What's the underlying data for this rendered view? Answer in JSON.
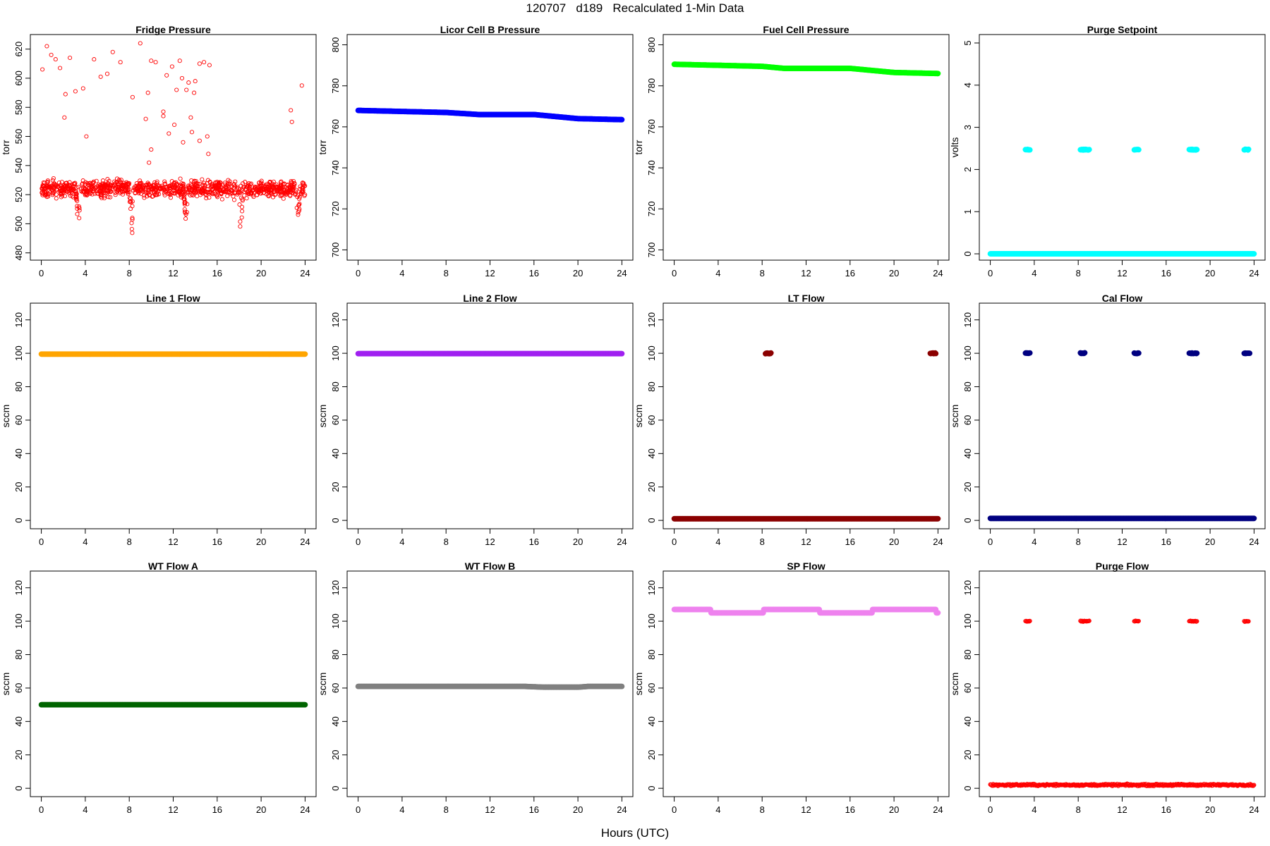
{
  "figure": {
    "title": "120707   d189   Recalculated 1-Min Data",
    "xlabel": "Hours (UTC)"
  },
  "chart_data": [
    {
      "type": "scatter",
      "title": "Fridge Pressure",
      "ylabel": "torr",
      "ylim": [
        475,
        630
      ],
      "yticks": [
        480,
        500,
        520,
        540,
        560,
        580,
        600,
        620
      ],
      "xlim": [
        -1,
        25
      ],
      "xticks": [
        0,
        4,
        8,
        12,
        16,
        20,
        24
      ],
      "color": "#ff0000",
      "marker": "open-circle",
      "pattern": "fridge"
    },
    {
      "type": "scatter",
      "title": "Licor Cell B Pressure",
      "ylabel": "torr",
      "ylim": [
        695,
        805
      ],
      "yticks": [
        700,
        720,
        740,
        760,
        780,
        800
      ],
      "xlim": [
        -1,
        25
      ],
      "xticks": [
        0,
        4,
        8,
        12,
        16,
        20,
        24
      ],
      "color": "#0000ff",
      "marker": "filled",
      "pattern": "line",
      "segments": [
        [
          0,
          768
        ],
        [
          4,
          767.5
        ],
        [
          8,
          767
        ],
        [
          11,
          766
        ],
        [
          16,
          766
        ],
        [
          18,
          765
        ],
        [
          20,
          764
        ],
        [
          24,
          763.5
        ]
      ]
    },
    {
      "type": "scatter",
      "title": "Fuel Cell Pressure",
      "ylabel": "torr",
      "ylim": [
        695,
        805
      ],
      "yticks": [
        700,
        720,
        740,
        760,
        780,
        800
      ],
      "xlim": [
        -1,
        25
      ],
      "xticks": [
        0,
        4,
        8,
        12,
        16,
        20,
        24
      ],
      "color": "#00ff00",
      "marker": "filled",
      "pattern": "line",
      "segments": [
        [
          0,
          790.5
        ],
        [
          4,
          790
        ],
        [
          8,
          789.5
        ],
        [
          10,
          788.5
        ],
        [
          16,
          788.5
        ],
        [
          18,
          787.5
        ],
        [
          20,
          786.5
        ],
        [
          24,
          786
        ]
      ]
    },
    {
      "type": "scatter",
      "title": "Purge Setpoint",
      "ylabel": "volts",
      "ylim": [
        -0.15,
        5.2
      ],
      "yticks": [
        0,
        1,
        2,
        3,
        4,
        5
      ],
      "xlim": [
        -1,
        25
      ],
      "xticks": [
        0,
        4,
        8,
        12,
        16,
        20,
        24
      ],
      "color": "#00ffff",
      "marker": "filled",
      "pattern": "flat-spikes",
      "base": 0,
      "spike": 2.47,
      "spikes": [
        [
          3.2,
          3.6
        ],
        [
          8.2,
          9.0
        ],
        [
          13.1,
          13.5
        ],
        [
          18.1,
          18.8
        ],
        [
          23.1,
          23.5
        ]
      ]
    },
    {
      "type": "scatter",
      "title": "Line 1 Flow",
      "ylabel": "sccm",
      "ylim": [
        -5,
        130
      ],
      "yticks": [
        0,
        20,
        40,
        60,
        80,
        100,
        120
      ],
      "xlim": [
        -1,
        25
      ],
      "xticks": [
        0,
        4,
        8,
        12,
        16,
        20,
        24
      ],
      "color": "#ffa500",
      "marker": "filled",
      "pattern": "line",
      "segments": [
        [
          0,
          99.5
        ],
        [
          24,
          99.5
        ]
      ]
    },
    {
      "type": "scatter",
      "title": "Line 2 Flow",
      "ylabel": "sccm",
      "ylim": [
        -5,
        130
      ],
      "yticks": [
        0,
        20,
        40,
        60,
        80,
        100,
        120
      ],
      "xlim": [
        -1,
        25
      ],
      "xticks": [
        0,
        4,
        8,
        12,
        16,
        20,
        24
      ],
      "color": "#a020f0",
      "marker": "filled",
      "pattern": "line",
      "segments": [
        [
          0,
          99.8
        ],
        [
          24,
          99.8
        ]
      ]
    },
    {
      "type": "scatter",
      "title": "LT Flow",
      "ylabel": "sccm",
      "ylim": [
        -5,
        130
      ],
      "yticks": [
        0,
        20,
        40,
        60,
        80,
        100,
        120
      ],
      "xlim": [
        -1,
        25
      ],
      "xticks": [
        0,
        4,
        8,
        12,
        16,
        20,
        24
      ],
      "color": "#8b0000",
      "marker": "filled",
      "pattern": "flat-spikes",
      "base": 1,
      "spike": 100,
      "spikes": [
        [
          8.3,
          8.8
        ],
        [
          23.3,
          23.8
        ]
      ]
    },
    {
      "type": "scatter",
      "title": "Cal Flow",
      "ylabel": "sccm",
      "ylim": [
        -5,
        130
      ],
      "yticks": [
        0,
        20,
        40,
        60,
        80,
        100,
        120
      ],
      "xlim": [
        -1,
        25
      ],
      "xticks": [
        0,
        4,
        8,
        12,
        16,
        20,
        24
      ],
      "color": "#000080",
      "marker": "filled",
      "pattern": "flat-spikes",
      "base": 1.2,
      "spike": 100,
      "spikes": [
        [
          3.2,
          3.6
        ],
        [
          8.2,
          8.6
        ],
        [
          13.1,
          13.5
        ],
        [
          18.1,
          18.8
        ],
        [
          23.1,
          23.6
        ]
      ]
    },
    {
      "type": "scatter",
      "title": "WT Flow A",
      "ylabel": "sccm",
      "ylim": [
        -5,
        130
      ],
      "yticks": [
        0,
        20,
        40,
        60,
        80,
        100,
        120
      ],
      "xlim": [
        -1,
        25
      ],
      "xticks": [
        0,
        4,
        8,
        12,
        16,
        20,
        24
      ],
      "color": "#006400",
      "marker": "filled",
      "pattern": "line",
      "segments": [
        [
          0,
          50
        ],
        [
          24,
          50
        ]
      ]
    },
    {
      "type": "scatter",
      "title": "WT Flow B",
      "ylabel": "sccm",
      "ylim": [
        -5,
        130
      ],
      "yticks": [
        0,
        20,
        40,
        60,
        80,
        100,
        120
      ],
      "xlim": [
        -1,
        25
      ],
      "xticks": [
        0,
        4,
        8,
        12,
        16,
        20,
        24
      ],
      "color": "#808080",
      "marker": "filled",
      "pattern": "line",
      "segments": [
        [
          0,
          61
        ],
        [
          15,
          61
        ],
        [
          17,
          60.5
        ],
        [
          20,
          60.5
        ],
        [
          21,
          61
        ],
        [
          24,
          61
        ]
      ]
    },
    {
      "type": "scatter",
      "title": "SP Flow",
      "ylabel": "sccm",
      "ylim": [
        -5,
        130
      ],
      "yticks": [
        0,
        20,
        40,
        60,
        80,
        100,
        120
      ],
      "xlim": [
        -1,
        25
      ],
      "xticks": [
        0,
        4,
        8,
        12,
        16,
        20,
        24
      ],
      "color": "#ee82ee",
      "marker": "filled",
      "pattern": "steps",
      "steps": [
        [
          0,
          3.3,
          107
        ],
        [
          3.3,
          8.1,
          105
        ],
        [
          8.1,
          13.2,
          107
        ],
        [
          13.2,
          18.0,
          105
        ],
        [
          18.0,
          23.8,
          107
        ],
        [
          23.8,
          24.0,
          105
        ]
      ]
    },
    {
      "type": "scatter",
      "title": "Purge Flow",
      "ylabel": "sccm",
      "ylim": [
        -5,
        130
      ],
      "yticks": [
        0,
        20,
        40,
        60,
        80,
        100,
        120
      ],
      "xlim": [
        -1,
        25
      ],
      "xticks": [
        0,
        4,
        8,
        12,
        16,
        20,
        24
      ],
      "color": "#ff0000",
      "marker": "open-circle",
      "pattern": "flat-spikes",
      "base": 2,
      "spike": 100,
      "spikes": [
        [
          3.2,
          3.6
        ],
        [
          8.2,
          9.0
        ],
        [
          13.1,
          13.5
        ],
        [
          18.1,
          18.8
        ],
        [
          23.1,
          23.5
        ]
      ]
    }
  ]
}
